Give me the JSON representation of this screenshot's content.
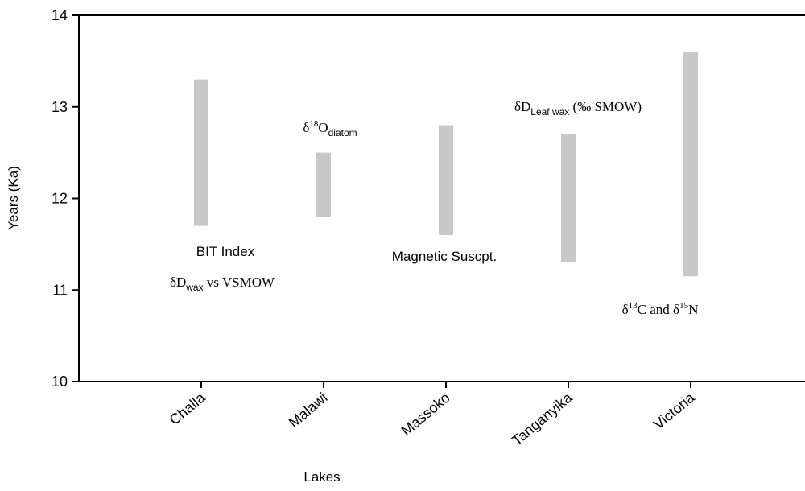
{
  "chart_data": {
    "type": "range_bar",
    "x_label": "Lakes",
    "y_label": "Years (Ka)",
    "categories": [
      "Challa",
      "Malawi",
      "Massoko",
      "Tanganyika",
      "Victoria"
    ],
    "low": [
      11.7,
      11.8,
      11.6,
      11.3,
      11.15
    ],
    "high": [
      13.3,
      12.5,
      12.8,
      12.7,
      13.6
    ],
    "color": "#c8c8c8",
    "ylim": [
      10,
      14
    ],
    "yticks": [
      10,
      11,
      12,
      13,
      14
    ],
    "annotations": [
      [
        {
          "text": "BIT Index"
        }
      ],
      [
        {
          "text": "δD"
        },
        {
          "text": "wax",
          "shift": "sub"
        },
        {
          "text": " vs VSMOW"
        }
      ],
      [
        {
          "text": "δ"
        },
        {
          "text": "18",
          "shift": "super"
        },
        {
          "text": "O"
        },
        {
          "text": "diatom",
          "shift": "sub"
        }
      ],
      [
        {
          "text": "Magnetic Suscpt."
        }
      ],
      [
        {
          "text": "δD"
        },
        {
          "text": "Leaf wax",
          "shift": "sub"
        },
        {
          "text": " (‰ SMOW)"
        }
      ],
      [
        {
          "text": "δ"
        },
        {
          "text": "13",
          "shift": "super"
        },
        {
          "text": "C and δ"
        },
        {
          "text": "15",
          "shift": "super"
        },
        {
          "text": "N"
        }
      ]
    ]
  }
}
